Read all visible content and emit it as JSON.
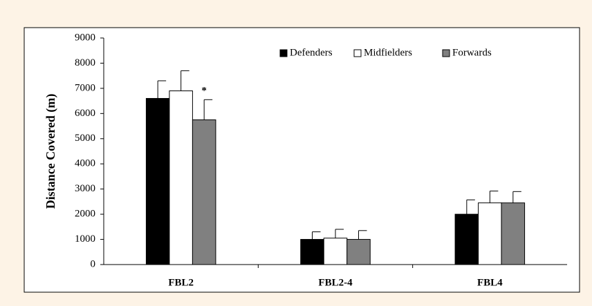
{
  "chart_data": {
    "type": "bar",
    "y_label": "Distance Covered (m)",
    "categories": [
      "FBL2",
      "FBL2-4",
      "FBL4"
    ],
    "series": [
      {
        "name": "Defenders",
        "color": "#000000",
        "values": [
          6600,
          1000,
          2000
        ],
        "errors": [
          700,
          300,
          570
        ]
      },
      {
        "name": "Midfielders",
        "color": "#ffffff",
        "values": [
          6900,
          1050,
          2450
        ],
        "errors": [
          800,
          350,
          470
        ]
      },
      {
        "name": "Forwards",
        "color": "#808080",
        "values": [
          5750,
          1000,
          2450
        ],
        "errors": [
          800,
          350,
          450
        ]
      }
    ],
    "annotation": "*",
    "ylim": [
      0,
      9000
    ],
    "yticks": [
      0,
      1000,
      2000,
      3000,
      4000,
      5000,
      6000,
      7000,
      8000,
      9000
    ],
    "legend": "top"
  }
}
